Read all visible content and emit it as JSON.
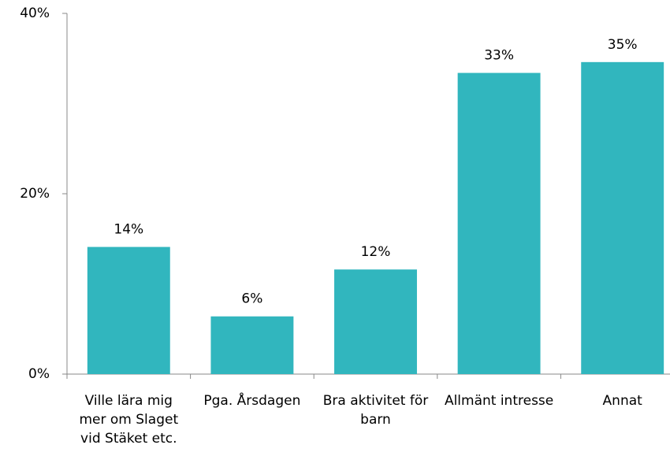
{
  "chart_data": {
    "type": "bar",
    "categories": [
      "Ville lära mig mer om Slaget vid Stäket etc.",
      "Pga. Årsdagen",
      "Bra aktivitet för barn",
      "Allmänt intresse",
      "Annat"
    ],
    "values": [
      14.1,
      6.4,
      11.6,
      33.4,
      34.6
    ],
    "value_labels": [
      "14%",
      "6%",
      "12%",
      "33%",
      "35%"
    ],
    "color": "#31b6be",
    "ylim": [
      0,
      40
    ],
    "yticks": [
      {
        "value": 0,
        "label": "0%"
      },
      {
        "value": 20,
        "label": "20%"
      },
      {
        "value": 40,
        "label": "40%"
      }
    ]
  }
}
